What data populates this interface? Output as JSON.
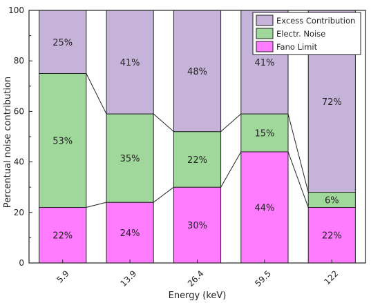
{
  "chart_data": {
    "type": "bar",
    "stacked": true,
    "categories": [
      "5.9",
      "13.9",
      "26.4",
      "59.5",
      "122"
    ],
    "xlabel": "Energy (keV)",
    "ylabel": "Percentual noise contribution",
    "ylim": [
      0,
      100
    ],
    "yticks": [
      0,
      20,
      40,
      60,
      80,
      100
    ],
    "series": [
      {
        "name": "Fano Limit",
        "color": "#ff7bff",
        "values": [
          22,
          24,
          30,
          44,
          22
        ],
        "labels": [
          "22%",
          "24%",
          "30%",
          "44%",
          "22%"
        ]
      },
      {
        "name": "Electr. Noise",
        "color": "#9fd89a",
        "values": [
          53,
          35,
          22,
          15,
          6
        ],
        "labels": [
          "53%",
          "35%",
          "22%",
          "15%",
          "6%"
        ]
      },
      {
        "name": "Excess Contribution",
        "color": "#c6b3d9",
        "values": [
          25,
          41,
          48,
          41,
          72
        ],
        "labels": [
          "25%",
          "41%",
          "48%",
          "41%",
          "72%"
        ]
      }
    ],
    "legend_order": [
      "Excess Contribution",
      "Electr. Noise",
      "Fano Limit"
    ],
    "legend_position": "top-right",
    "connector_lines": true,
    "grid": false
  }
}
